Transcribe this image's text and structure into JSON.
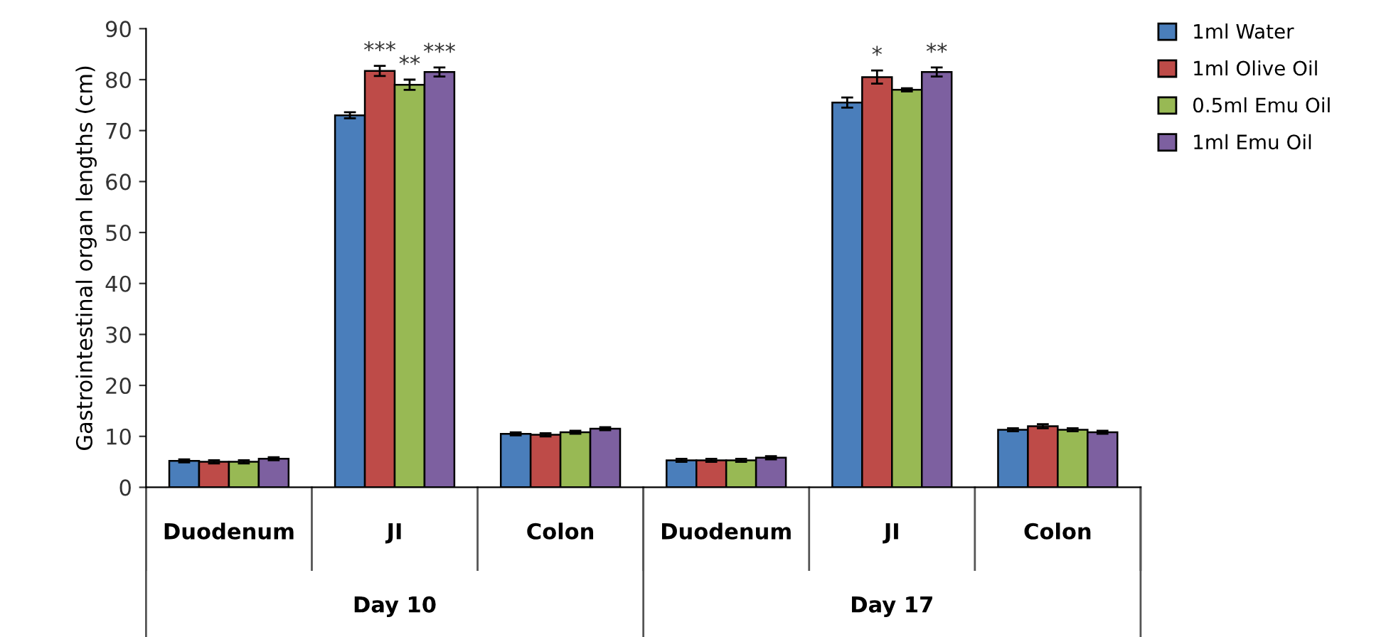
{
  "chart_data": {
    "type": "bar",
    "ylabel": "Gastrointestinal organ lengths (cm)",
    "categories": [
      "Duodenum",
      "JI",
      "Colon",
      "Duodenum",
      "JI",
      "Colon"
    ],
    "annotations": [
      "Day 10",
      "Day 17"
    ],
    "ylim": [
      0,
      90
    ],
    "yticks": [
      0,
      10,
      20,
      30,
      40,
      50,
      60,
      70,
      80,
      90
    ],
    "grid": false,
    "legend": "top right",
    "series": [
      {
        "name": "1ml Water",
        "color": "#4a7ebb",
        "values": [
          5.2,
          73,
          10.5,
          5.3,
          75.5,
          11.3
        ],
        "errors": [
          0.3,
          0.6,
          0.3,
          0.3,
          1.0,
          0.3
        ],
        "value_labels": [
          null,
          null,
          null,
          null,
          null,
          null
        ]
      },
      {
        "name": "1ml Olive Oil",
        "color": "#be4b48",
        "values": [
          5.0,
          81.7,
          10.3,
          5.3,
          80.5,
          12.0
        ],
        "errors": [
          0.3,
          1.0,
          0.3,
          0.3,
          1.3,
          0.4
        ],
        "value_labels": [
          null,
          "***",
          null,
          null,
          "*",
          null
        ]
      },
      {
        "name": "0.5ml Emu Oil",
        "color": "#98b954",
        "values": [
          5.0,
          79,
          10.8,
          5.3,
          78,
          11.3
        ],
        "errors": [
          0.3,
          1.0,
          0.3,
          0.3,
          0.3,
          0.3
        ],
        "value_labels": [
          null,
          "**",
          null,
          null,
          null,
          null
        ]
      },
      {
        "name": "1ml Emu Oil",
        "color": "#7d60a0",
        "values": [
          5.6,
          81.5,
          11.5,
          5.8,
          81.5,
          10.8
        ],
        "errors": [
          0.3,
          0.9,
          0.3,
          0.3,
          0.9,
          0.3
        ],
        "value_labels": [
          null,
          "***",
          null,
          null,
          "**",
          null
        ]
      }
    ]
  }
}
